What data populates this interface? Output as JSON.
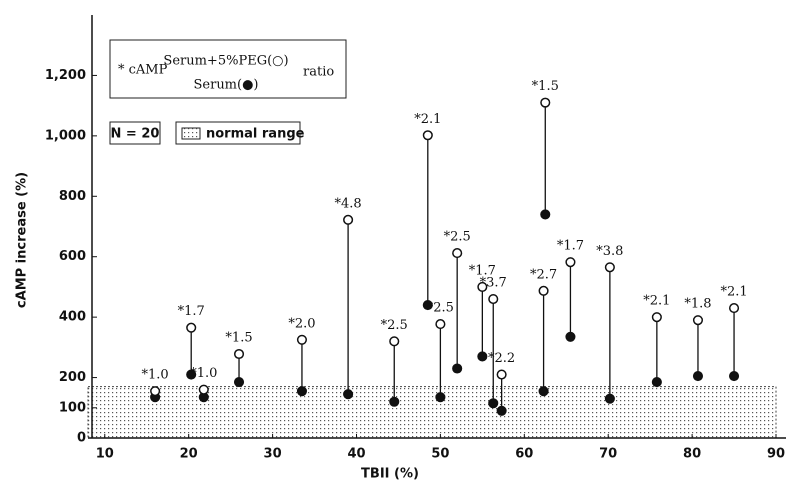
{
  "chart_data": {
    "type": "dumbbell",
    "x_label": "TBII (%)",
    "y_label": "cAMP increase (%)",
    "xlim": [
      8,
      90
    ],
    "xticks": [
      10,
      20,
      30,
      40,
      50,
      60,
      70,
      80,
      90
    ],
    "ylim": [
      0,
      1400
    ],
    "yticks": [
      0,
      100,
      200,
      400,
      600,
      800,
      {
        "value": 1000,
        "label": "1,000"
      },
      {
        "value": 1200,
        "label": "1,200"
      }
    ],
    "x": [
      16,
      20.3,
      21.8,
      26,
      33.5,
      39,
      44.5,
      48.5,
      50,
      52,
      55,
      56.3,
      57.3,
      62.3,
      62.5,
      65.5,
      70.2,
      75.8,
      80.7,
      85
    ],
    "series": [
      {
        "name": "Serum(●)",
        "color": "#111111",
        "filled": true,
        "values": [
          135,
          210,
          135,
          185,
          155,
          145,
          120,
          440,
          135,
          230,
          270,
          115,
          90,
          155,
          740,
          335,
          130,
          185,
          205,
          205
        ]
      },
      {
        "name": "Serum+5%PEG(○)",
        "color": "#111111",
        "filled": false,
        "values": [
          155,
          365,
          160,
          278,
          325,
          722,
          320,
          1002,
          377,
          612,
          500,
          460,
          210,
          487,
          1110,
          582,
          565,
          400,
          390,
          430
        ]
      }
    ],
    "annotations": [
      "*1.0",
      "*1.7",
      "*1.0",
      "*1.5",
      "*2.0",
      "*4.8",
      "*2.5",
      "*2.1",
      "*2.5",
      "*2.5",
      "*1.7",
      "*3.7",
      "*2.2",
      "*2.7",
      "*1.5",
      "*1.7",
      "*3.8",
      "*2.1",
      "*1.8",
      "*2.1"
    ],
    "legend_prefix": "*  cAMP",
    "legend_suffix": "ratio",
    "n_label": "N = 20",
    "normal_range": {
      "label": "normal range",
      "ylim": [
        0,
        170
      ]
    }
  }
}
